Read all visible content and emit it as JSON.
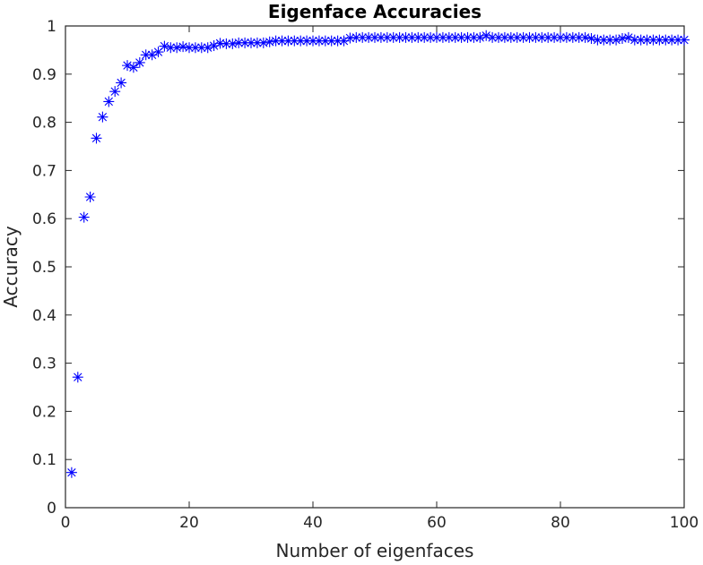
{
  "chart_data": {
    "type": "scatter",
    "title": "Eigenface Accuracies",
    "xlabel": "Number of eigenfaces",
    "ylabel": "Accuracy",
    "xlim": [
      0,
      100
    ],
    "ylim": [
      0,
      1
    ],
    "xticks": [
      0,
      20,
      40,
      60,
      80,
      100
    ],
    "yticks": [
      0,
      0.1,
      0.2,
      0.3,
      0.4,
      0.5,
      0.6,
      0.7,
      0.8,
      0.9,
      1
    ],
    "grid": false,
    "marker": "asterisk",
    "colors": {
      "marker": "#0000ff",
      "axes": "#262626",
      "background": "#ffffff"
    },
    "series": [
      {
        "x": [
          1,
          2,
          3,
          4,
          5,
          6,
          7,
          8,
          9,
          10,
          11,
          12,
          13,
          14,
          15,
          16,
          17,
          18,
          19,
          20,
          21,
          22,
          23,
          24,
          25,
          26,
          27,
          28,
          29,
          30,
          31,
          32,
          33,
          34,
          35,
          36,
          37,
          38,
          39,
          40,
          41,
          42,
          43,
          44,
          45,
          46,
          47,
          48,
          49,
          50,
          51,
          52,
          53,
          54,
          55,
          56,
          57,
          58,
          59,
          60,
          61,
          62,
          63,
          64,
          65,
          66,
          67,
          68,
          69,
          70,
          71,
          72,
          73,
          74,
          75,
          76,
          77,
          78,
          79,
          80,
          81,
          82,
          83,
          84,
          85,
          86,
          87,
          88,
          89,
          90,
          91,
          92,
          93,
          94,
          95,
          96,
          97,
          98,
          99,
          100
        ],
        "y": [
          0.073,
          0.271,
          0.603,
          0.645,
          0.767,
          0.811,
          0.843,
          0.864,
          0.882,
          0.918,
          0.914,
          0.924,
          0.94,
          0.94,
          0.946,
          0.958,
          0.955,
          0.955,
          0.957,
          0.955,
          0.955,
          0.955,
          0.955,
          0.959,
          0.964,
          0.963,
          0.963,
          0.965,
          0.965,
          0.965,
          0.965,
          0.965,
          0.967,
          0.969,
          0.969,
          0.969,
          0.969,
          0.969,
          0.969,
          0.969,
          0.969,
          0.969,
          0.969,
          0.969,
          0.969,
          0.975,
          0.976,
          0.976,
          0.976,
          0.976,
          0.976,
          0.976,
          0.976,
          0.976,
          0.976,
          0.976,
          0.976,
          0.976,
          0.976,
          0.976,
          0.976,
          0.976,
          0.976,
          0.976,
          0.976,
          0.976,
          0.976,
          0.98,
          0.976,
          0.976,
          0.976,
          0.976,
          0.976,
          0.976,
          0.976,
          0.976,
          0.976,
          0.976,
          0.976,
          0.976,
          0.976,
          0.976,
          0.976,
          0.976,
          0.974,
          0.971,
          0.971,
          0.971,
          0.971,
          0.974,
          0.976,
          0.971,
          0.971,
          0.971,
          0.971,
          0.971,
          0.971,
          0.971,
          0.971,
          0.971
        ]
      }
    ]
  }
}
